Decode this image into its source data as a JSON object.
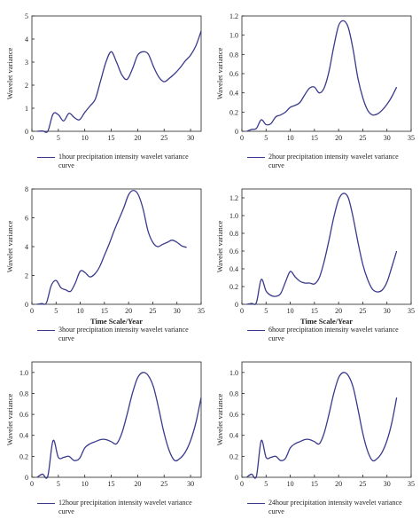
{
  "colors": {
    "series": "#3a3a8c",
    "axis": "#222222"
  },
  "chart_data": [
    {
      "type": "line",
      "xlabel": "",
      "ylabel": "Wavelet variance",
      "xlim": [
        0,
        32
      ],
      "ylim": [
        0,
        5
      ],
      "xticks": [
        0,
        5,
        10,
        15,
        20,
        25,
        30
      ],
      "yticks": [
        0,
        1,
        2,
        3,
        4,
        5
      ],
      "legend": "1hour precipitation intensity wavelet variance curve",
      "x": [
        1,
        2,
        3,
        4,
        5,
        6,
        7,
        8,
        9,
        10,
        11,
        12,
        13,
        14,
        15,
        16,
        17,
        18,
        19,
        20,
        21,
        22,
        23,
        24,
        25,
        26,
        27,
        28,
        29,
        30,
        31,
        32
      ],
      "values": [
        0,
        0.02,
        0,
        0.75,
        0.72,
        0.45,
        0.78,
        0.6,
        0.5,
        0.82,
        1.1,
        1.4,
        2.2,
        3.0,
        3.45,
        3.0,
        2.45,
        2.25,
        2.7,
        3.3,
        3.45,
        3.35,
        2.8,
        2.35,
        2.15,
        2.3,
        2.5,
        2.75,
        3.05,
        3.3,
        3.7,
        4.35
      ]
    },
    {
      "type": "line",
      "xlabel": "",
      "ylabel": "Wavelet variance",
      "xlim": [
        0,
        35
      ],
      "ylim": [
        0,
        1.2
      ],
      "xticks": [
        0,
        5,
        10,
        15,
        20,
        25,
        30,
        35
      ],
      "yticks": [
        0,
        0.2,
        0.4,
        0.6,
        0.8,
        1.0,
        1.2
      ],
      "legend": "2hour precipitation intensity wavelet variance curve",
      "x": [
        1,
        2,
        3,
        4,
        5,
        6,
        7,
        8,
        9,
        10,
        11,
        12,
        13,
        14,
        15,
        16,
        17,
        18,
        19,
        20,
        21,
        22,
        23,
        24,
        25,
        26,
        27,
        28,
        29,
        30,
        31,
        32
      ],
      "values": [
        0,
        0.02,
        0.03,
        0.12,
        0.07,
        0.08,
        0.15,
        0.17,
        0.2,
        0.25,
        0.27,
        0.3,
        0.38,
        0.45,
        0.46,
        0.4,
        0.45,
        0.62,
        0.88,
        1.1,
        1.15,
        1.08,
        0.85,
        0.55,
        0.35,
        0.22,
        0.17,
        0.18,
        0.22,
        0.28,
        0.36,
        0.46
      ]
    },
    {
      "type": "line",
      "xlabel": "Time Scale/Year",
      "ylabel": "Wavelet variance",
      "xlim": [
        0,
        35
      ],
      "ylim": [
        0,
        8
      ],
      "xticks": [
        0,
        5,
        10,
        15,
        20,
        25,
        30,
        35
      ],
      "yticks": [
        0,
        2,
        4,
        6,
        8
      ],
      "legend": "3hour precipitation intensity wavelet variance curve",
      "x": [
        1,
        2,
        3,
        4,
        5,
        6,
        7,
        8,
        9,
        10,
        11,
        12,
        13,
        14,
        15,
        16,
        17,
        18,
        19,
        20,
        21,
        22,
        23,
        24,
        25,
        26,
        27,
        28,
        29,
        30,
        31,
        32
      ],
      "values": [
        0,
        0.05,
        0.1,
        1.3,
        1.65,
        1.15,
        1.0,
        0.9,
        1.5,
        2.3,
        2.2,
        1.9,
        2.1,
        2.6,
        3.4,
        4.2,
        5.1,
        5.9,
        6.7,
        7.6,
        7.9,
        7.6,
        6.6,
        5.1,
        4.3,
        4.0,
        4.15,
        4.3,
        4.45,
        4.3,
        4.05,
        3.95
      ]
    },
    {
      "type": "line",
      "xlabel": "Time Scale/Year",
      "ylabel": "Wavelet variance",
      "xlim": [
        0,
        35
      ],
      "ylim": [
        0,
        1.3
      ],
      "xticks": [
        0,
        5,
        10,
        15,
        20,
        25,
        30,
        35
      ],
      "yticks": [
        0,
        0.2,
        0.4,
        0.6,
        0.8,
        1.0,
        1.2
      ],
      "legend": "6hour precipitation intensity wavelet variance curve",
      "x": [
        1,
        2,
        3,
        4,
        5,
        6,
        7,
        8,
        9,
        10,
        11,
        12,
        13,
        14,
        15,
        16,
        17,
        18,
        19,
        20,
        21,
        22,
        23,
        24,
        25,
        26,
        27,
        28,
        29,
        30,
        31,
        32
      ],
      "values": [
        0,
        0.01,
        0.02,
        0.28,
        0.15,
        0.1,
        0.09,
        0.12,
        0.25,
        0.37,
        0.31,
        0.26,
        0.24,
        0.24,
        0.23,
        0.3,
        0.48,
        0.72,
        0.98,
        1.18,
        1.25,
        1.2,
        0.98,
        0.7,
        0.45,
        0.28,
        0.17,
        0.14,
        0.16,
        0.25,
        0.42,
        0.6
      ]
    },
    {
      "type": "line",
      "xlabel": "",
      "ylabel": "Wavelet variance",
      "xlim": [
        0,
        32
      ],
      "ylim": [
        0,
        1.1
      ],
      "xticks": [
        0,
        5,
        10,
        15,
        20,
        25,
        30
      ],
      "yticks": [
        0,
        0.2,
        0.4,
        0.6,
        0.8,
        1.0
      ],
      "legend": "12hour precipitation intensity wavelet variance curve",
      "x": [
        1,
        2,
        3,
        4,
        5,
        6,
        7,
        8,
        9,
        10,
        11,
        12,
        13,
        14,
        15,
        16,
        17,
        18,
        19,
        20,
        21,
        22,
        23,
        24,
        25,
        26,
        27,
        28,
        29,
        30,
        31,
        32
      ],
      "values": [
        0,
        0.03,
        0.01,
        0.35,
        0.19,
        0.19,
        0.2,
        0.16,
        0.18,
        0.28,
        0.32,
        0.34,
        0.36,
        0.36,
        0.34,
        0.32,
        0.42,
        0.6,
        0.8,
        0.95,
        1.0,
        0.97,
        0.86,
        0.65,
        0.42,
        0.25,
        0.16,
        0.18,
        0.24,
        0.35,
        0.52,
        0.76
      ]
    },
    {
      "type": "line",
      "xlabel": "",
      "ylabel": "Wavelet variance",
      "xlim": [
        0,
        35
      ],
      "ylim": [
        0,
        1.1
      ],
      "xticks": [
        0,
        5,
        10,
        15,
        20,
        25,
        30,
        35
      ],
      "yticks": [
        0,
        0.2,
        0.4,
        0.6,
        0.8,
        1.0
      ],
      "legend": "24hour precipitation intensity wavelet variance curve",
      "x": [
        1,
        2,
        3,
        4,
        5,
        6,
        7,
        8,
        9,
        10,
        11,
        12,
        13,
        14,
        15,
        16,
        17,
        18,
        19,
        20,
        21,
        22,
        23,
        24,
        25,
        26,
        27,
        28,
        29,
        30,
        31,
        32
      ],
      "values": [
        0,
        0.03,
        0.01,
        0.35,
        0.19,
        0.19,
        0.2,
        0.16,
        0.18,
        0.28,
        0.32,
        0.34,
        0.36,
        0.36,
        0.34,
        0.32,
        0.42,
        0.6,
        0.8,
        0.95,
        1.0,
        0.97,
        0.86,
        0.65,
        0.42,
        0.25,
        0.16,
        0.18,
        0.24,
        0.35,
        0.52,
        0.76
      ]
    }
  ]
}
